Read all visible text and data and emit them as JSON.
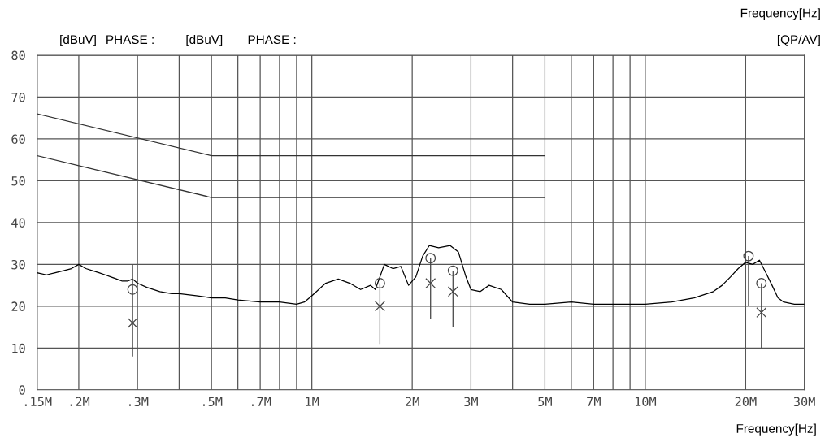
{
  "chart_data": {
    "type": "line",
    "xlabel": "Frequency[Hz]",
    "annotations": [
      "[dBuV]",
      "PHASE :",
      "[dBuV]",
      "PHASE :",
      "Frequency[Hz]",
      "[QP/AV]"
    ],
    "log": "x",
    "grid": true,
    "tick_labels": "xy",
    "xlim": [
      0.15,
      30
    ],
    "ylim": [
      0,
      80
    ],
    "xticks": [
      {
        "value": 0.15,
        "label": ".15M"
      },
      {
        "value": 0.2,
        "label": ".2M"
      },
      {
        "value": 0.3,
        "label": ".3M"
      },
      {
        "value": 0.4,
        "label": null
      },
      {
        "value": 0.5,
        "label": ".5M"
      },
      {
        "value": 0.6,
        "label": null
      },
      {
        "value": 0.7,
        "label": ".7M"
      },
      {
        "value": 0.8,
        "label": null
      },
      {
        "value": 0.9,
        "label": null
      },
      {
        "value": 1,
        "label": "1M"
      },
      {
        "value": 2,
        "label": "2M"
      },
      {
        "value": 3,
        "label": "3M"
      },
      {
        "value": 4,
        "label": null
      },
      {
        "value": 5,
        "label": "5M"
      },
      {
        "value": 6,
        "label": null
      },
      {
        "value": 7,
        "label": "7M"
      },
      {
        "value": 8,
        "label": null
      },
      {
        "value": 9,
        "label": null
      },
      {
        "value": 10,
        "label": "10M"
      },
      {
        "value": 20,
        "label": "20M"
      },
      {
        "value": 30,
        "label": "30M"
      }
    ],
    "yticks": [
      0,
      10,
      20,
      30,
      40,
      50,
      60,
      70,
      80
    ],
    "series": [
      {
        "color": "#000000",
        "marker": "none",
        "line_style": "solid",
        "x": [
          0.15,
          0.16,
          0.17,
          0.18,
          0.19,
          0.2,
          0.21,
          0.22,
          0.23,
          0.24,
          0.25,
          0.26,
          0.27,
          0.28,
          0.29,
          0.3,
          0.32,
          0.35,
          0.38,
          0.4,
          0.45,
          0.5,
          0.55,
          0.6,
          0.7,
          0.8,
          0.9,
          0.95,
          1.0,
          1.1,
          1.2,
          1.3,
          1.4,
          1.5,
          1.55,
          1.6,
          1.65,
          1.75,
          1.85,
          1.95,
          2.05,
          2.15,
          2.25,
          2.4,
          2.6,
          2.75,
          2.9,
          3.0,
          3.2,
          3.4,
          3.7,
          4.0,
          4.5,
          5,
          6,
          7,
          8,
          9,
          10,
          12,
          14,
          16,
          17,
          18,
          19,
          20,
          21,
          22,
          23,
          24,
          25,
          26,
          28,
          30
        ],
        "values": [
          28,
          27.5,
          28,
          28.5,
          29,
          30,
          29,
          28.5,
          28,
          27.5,
          27,
          26.5,
          26,
          26,
          26.5,
          25.5,
          24.5,
          23.5,
          23,
          23,
          22.5,
          22,
          22,
          21.5,
          21,
          21,
          20.5,
          21,
          22.5,
          25.5,
          26.5,
          25.5,
          24,
          25,
          24,
          27,
          30,
          29,
          29.5,
          25,
          27,
          32,
          34.5,
          34,
          34.5,
          33,
          27,
          24,
          23.5,
          25,
          24,
          21,
          20.5,
          20.5,
          21,
          20.5,
          20.5,
          20.5,
          20.5,
          21,
          22,
          23.5,
          25,
          27,
          29,
          30.5,
          30,
          31,
          28,
          25,
          22,
          21,
          20.5,
          20.5
        ]
      },
      {
        "color": "#333333",
        "marker": "none",
        "line_style": "solid",
        "x": [
          0.15,
          0.5,
          5
        ],
        "values": [
          66,
          56,
          56
        ]
      },
      {
        "color": "#333333",
        "marker": "none",
        "line_style": "solid",
        "x": [
          0.15,
          0.5,
          5
        ],
        "values": [
          56,
          46,
          46
        ]
      },
      {
        "type": "scatter",
        "color": "#444444",
        "marker": "circle",
        "x": [
          0.29,
          1.6,
          2.27,
          2.65,
          20.4,
          22.3
        ],
        "values": [
          24,
          25.5,
          31.5,
          28.5,
          32,
          25.5
        ],
        "errors": [
          [
            8,
            30
          ],
          [
            11,
            25.5
          ],
          [
            17,
            31.5
          ],
          [
            15,
            28.5
          ],
          [
            20,
            32
          ],
          [
            10,
            25.5
          ]
        ]
      },
      {
        "type": "scatter",
        "color": "#444444",
        "marker": "cross",
        "x": [
          0.29,
          1.6,
          2.27,
          2.65,
          22.3
        ],
        "values": [
          16,
          20,
          25.5,
          23.5,
          18.5
        ]
      }
    ]
  }
}
